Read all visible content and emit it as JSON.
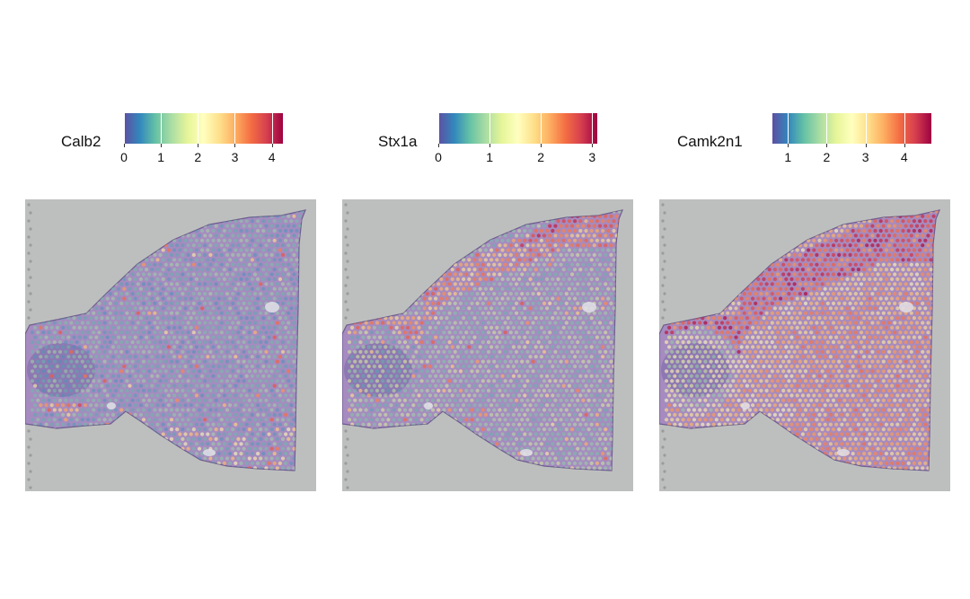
{
  "colors": {
    "background_tissue": "#bdbfbe",
    "tissue_base": "#a68bc0",
    "palette": [
      "#5e4fa2",
      "#3288bd",
      "#66c2a5",
      "#abdda4",
      "#e6f598",
      "#ffffbf",
      "#fee08b",
      "#fdae61",
      "#f46d43",
      "#d53e4f",
      "#9e0142"
    ]
  },
  "chart_data": [
    {
      "type": "spatial-heatmap",
      "gene": "Calb2",
      "legend_title": "Calb2",
      "scale_min": 0,
      "scale_max": 4.3,
      "ticks": [
        0,
        1,
        2,
        3,
        4
      ],
      "tick_labels": [
        "0",
        "1",
        "2",
        "3",
        "4"
      ],
      "expression_pattern": "low overall; sparse high spots in olfactory bulb and lower striatum"
    },
    {
      "type": "spatial-heatmap",
      "gene": "Stx1a",
      "legend_title": "Stx1a",
      "scale_min": 0,
      "scale_max": 3.1,
      "ticks": [
        0,
        1,
        2,
        3
      ],
      "tick_labels": [
        "0",
        "1",
        "2",
        "3"
      ],
      "expression_pattern": "moderate in cortex layers, low in striatum"
    },
    {
      "type": "spatial-heatmap",
      "gene": "Camk2n1",
      "legend_title": "Camk2n1",
      "scale_min": 0.6,
      "scale_max": 4.7,
      "ticks": [
        1,
        2,
        3,
        4
      ],
      "tick_labels": [
        "1",
        "2",
        "3",
        "4"
      ],
      "expression_pattern": "high in cortex, moderate elsewhere"
    }
  ]
}
